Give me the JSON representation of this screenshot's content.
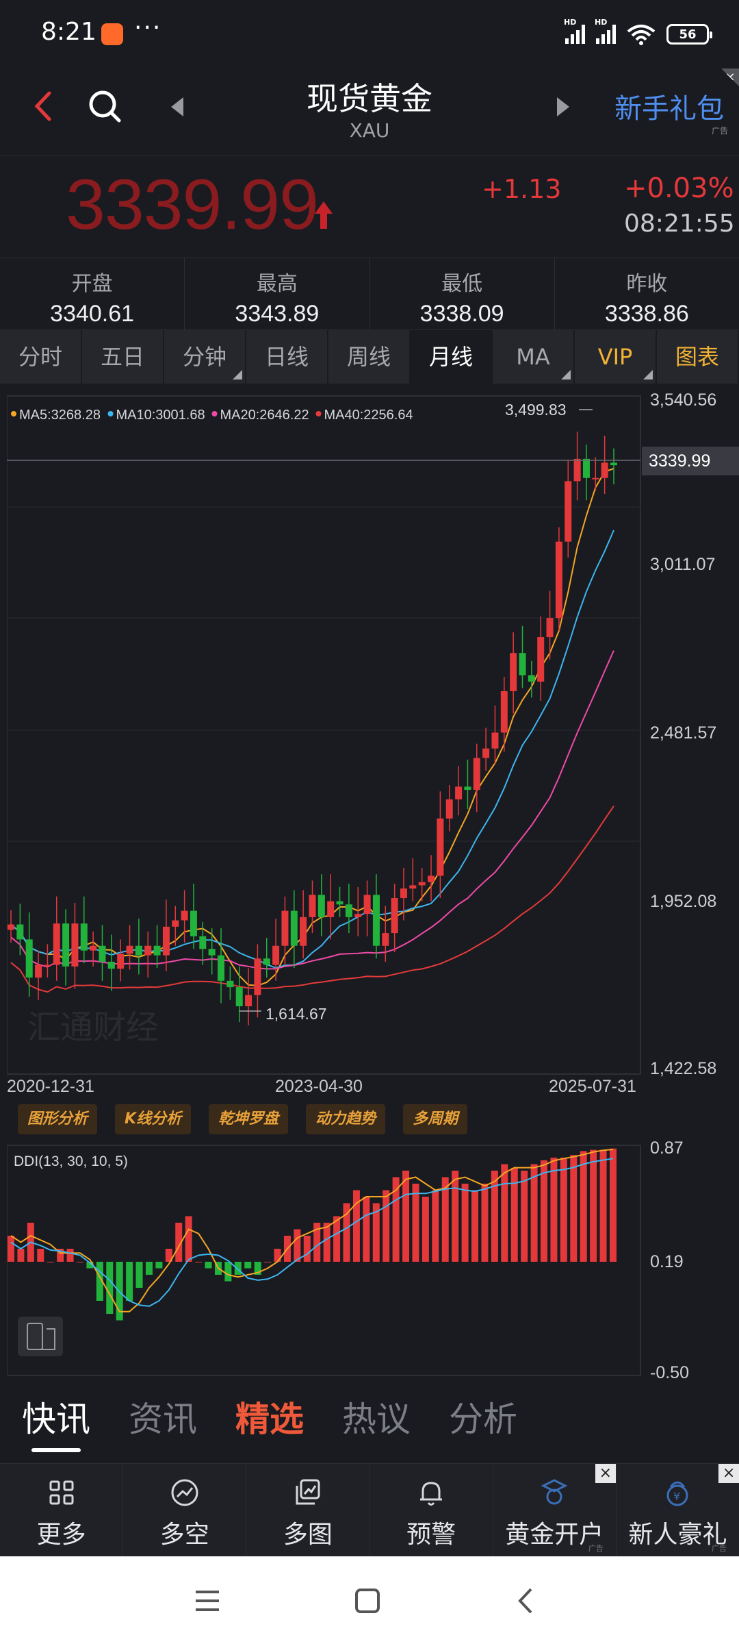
{
  "status_bar": {
    "time": "8:21",
    "more": "···",
    "hd1": "HD",
    "hd2": "HD",
    "battery": "56"
  },
  "header": {
    "title": "现货黄金",
    "subtitle": "XAU",
    "promo": "新手礼包",
    "promo_ad": "广告",
    "promo_close": "×"
  },
  "quote": {
    "price": "3339.99",
    "change": "+1.13",
    "change_pct": "+0.03%",
    "time": "08:21:55"
  },
  "stats": [
    {
      "label": "开盘",
      "value": "3340.61"
    },
    {
      "label": "最高",
      "value": "3343.89"
    },
    {
      "label": "最低",
      "value": "3338.09"
    },
    {
      "label": "昨收",
      "value": "3338.86"
    }
  ],
  "tabs": [
    "分时",
    "五日",
    "分钟",
    "日线",
    "周线",
    "月线",
    "MA",
    "VIP",
    "图表"
  ],
  "ma_legend": [
    {
      "label": "MA5:3268.28",
      "color": "#f5a623"
    },
    {
      "label": "MA10:3001.68",
      "color": "#3cb6f0"
    },
    {
      "label": "MA20:2646.22",
      "color": "#f04aa8"
    },
    {
      "label": "MA40:2256.64",
      "color": "#e53a3a"
    }
  ],
  "y_labels": [
    "3,540.56",
    "3,011.07",
    "2,481.57",
    "1,952.08",
    "1,422.58"
  ],
  "current_tag": "3339.99",
  "high_marker": "3,499.83",
  "low_marker": "1,614.67",
  "watermark": "汇通财经",
  "x_labels": [
    "2020-12-31",
    "2023-04-30",
    "2025-07-31"
  ],
  "tools": [
    "图形分析",
    "K线分析",
    "乾坤罗盘",
    "动力趋势",
    "多周期"
  ],
  "ddi": {
    "label": "DDI(13, 30, 10, 5)",
    "y_labels": [
      "0.87",
      "0.19",
      "-0.50"
    ]
  },
  "news_tabs": [
    "快讯",
    "资讯",
    "精选",
    "热议",
    "分析"
  ],
  "toolbar": [
    {
      "label": "更多",
      "icon": "grid-icon"
    },
    {
      "label": "多空",
      "icon": "trend-icon"
    },
    {
      "label": "多图",
      "icon": "multi-chart-icon"
    },
    {
      "label": "预警",
      "icon": "bell-icon"
    },
    {
      "label": "黄金开户",
      "icon": "account-icon",
      "ad": "广告",
      "close": "×"
    },
    {
      "label": "新人豪礼",
      "icon": "gift-icon",
      "ad": "广告",
      "close": "×"
    }
  ],
  "colors": {
    "up": "#e5383b",
    "down": "#22b33c",
    "accent": "#4f8ff0",
    "gold": "#f2b234"
  }
}
